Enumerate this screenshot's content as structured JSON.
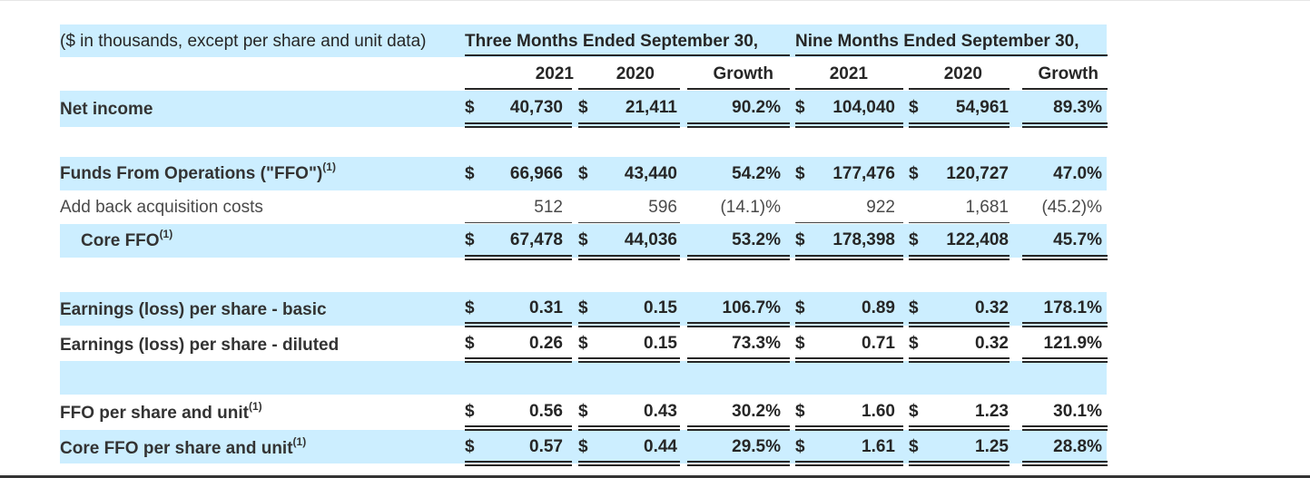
{
  "header": {
    "units_note": "($ in thousands, except per share and unit data)",
    "three_months": "Three Months Ended September 30,",
    "nine_months": "Nine Months Ended September 30,",
    "columns": [
      "2021",
      "2020",
      "Growth",
      "2021",
      "2020",
      "Growth"
    ]
  },
  "currency_symbol": "$",
  "footnote_marker": "(1)",
  "rows": [
    {
      "label": "Net income",
      "values": [
        "40,730",
        "21,411",
        "90.2%",
        "104,040",
        "54,961",
        "89.3%"
      ]
    },
    {
      "label": "Funds From Operations (\"FFO\")",
      "values": [
        "66,966",
        "43,440",
        "54.2%",
        "177,476",
        "120,727",
        "47.0%"
      ]
    },
    {
      "label": "Add back acquisition costs",
      "values": [
        "512",
        "596",
        "(14.1)%",
        "922",
        "1,681",
        "(45.2)%"
      ]
    },
    {
      "label": "Core FFO",
      "values": [
        "67,478",
        "44,036",
        "53.2%",
        "178,398",
        "122,408",
        "45.7%"
      ]
    },
    {
      "label": "Earnings (loss) per share - basic",
      "values": [
        "0.31",
        "0.15",
        "106.7%",
        "0.89",
        "0.32",
        "178.1%"
      ]
    },
    {
      "label": "Earnings (loss) per share - diluted",
      "values": [
        "0.26",
        "0.15",
        "73.3%",
        "0.71",
        "0.32",
        "121.9%"
      ]
    },
    {
      "label": "FFO per share and unit",
      "values": [
        "0.56",
        "0.43",
        "30.2%",
        "1.60",
        "1.23",
        "30.1%"
      ]
    },
    {
      "label": "Core FFO per share and unit",
      "values": [
        "0.57",
        "0.44",
        "29.5%",
        "1.61",
        "1.25",
        "28.8%"
      ]
    }
  ],
  "colors": {
    "stripe": "#cceeff",
    "text": "#262626"
  }
}
